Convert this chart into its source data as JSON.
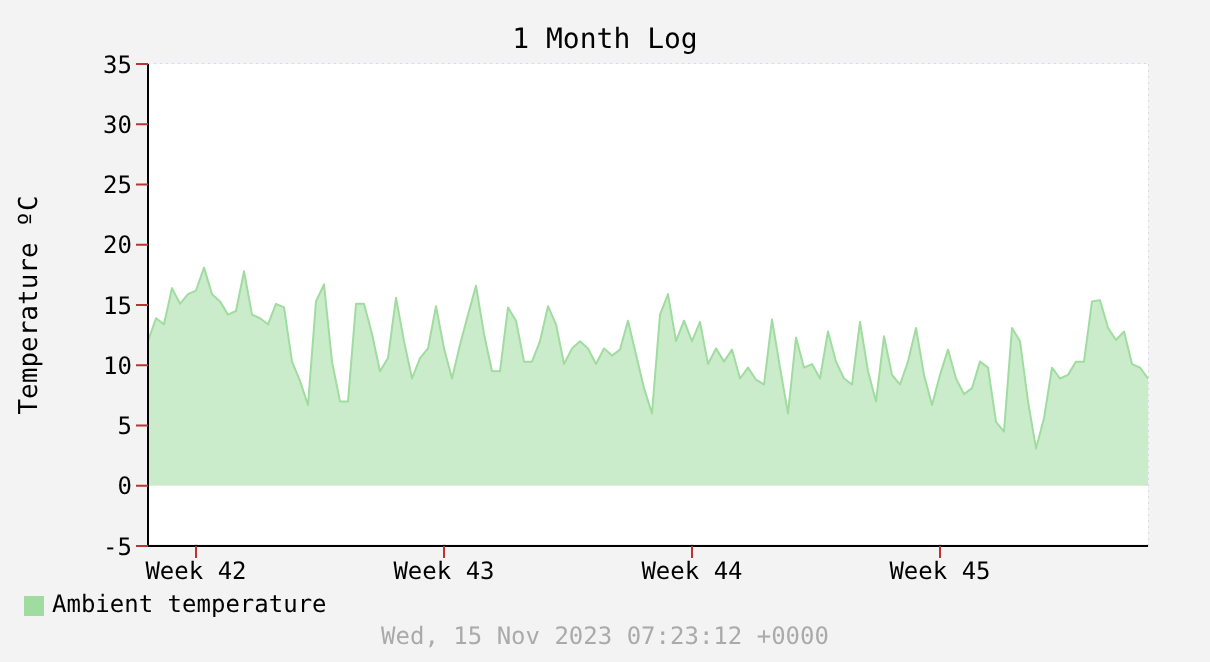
{
  "chart_data": {
    "type": "area",
    "title": "1 Month Log",
    "ylabel": "Temperature ºC",
    "annotations": [
      "Wed, 15 Nov 2023 07:23:12 +0000"
    ],
    "categories": [
      null,
      null,
      null,
      null,
      null,
      null,
      "Week 42",
      null,
      null,
      null,
      null,
      null,
      null,
      null,
      null,
      null,
      null,
      null,
      null,
      null,
      null,
      null,
      null,
      null,
      null,
      null,
      null,
      null,
      null,
      null,
      null,
      null,
      null,
      null,
      null,
      null,
      null,
      "Week 43",
      null,
      null,
      null,
      null,
      null,
      null,
      null,
      null,
      null,
      null,
      null,
      null,
      null,
      null,
      null,
      null,
      null,
      null,
      null,
      null,
      null,
      null,
      null,
      null,
      null,
      null,
      null,
      null,
      null,
      null,
      "Week 44",
      null,
      null,
      null,
      null,
      null,
      null,
      null,
      null,
      null,
      null,
      null,
      null,
      null,
      null,
      null,
      null,
      null,
      null,
      null,
      null,
      null,
      null,
      null,
      null,
      null,
      null,
      null,
      null,
      null,
      null,
      "Week 45",
      null,
      null,
      null,
      null,
      null,
      null,
      null,
      null,
      null,
      null,
      null,
      null,
      null,
      null,
      null,
      null,
      null,
      null,
      null,
      null,
      null,
      null,
      null,
      null,
      null,
      null
    ],
    "ylim": [
      -5,
      35
    ],
    "yticks": [
      -5,
      0,
      5,
      10,
      15,
      20,
      25,
      30,
      35
    ],
    "grid": true,
    "legend": "bottom left",
    "marker": "none",
    "line_style": "solid",
    "series": [
      {
        "name": "Ambient temperature",
        "color": "#a0dca0",
        "values": [
          12.0,
          13.9,
          13.4,
          16.4,
          15.1,
          15.9,
          16.2,
          18.1,
          15.9,
          15.3,
          14.2,
          14.5,
          17.8,
          14.2,
          13.9,
          13.4,
          15.1,
          14.8,
          10.3,
          8.7,
          6.7,
          15.3,
          16.7,
          10.3,
          7.0,
          7.0,
          15.1,
          15.1,
          12.6,
          9.5,
          10.6,
          15.6,
          12.0,
          8.9,
          10.6,
          11.4,
          14.9,
          11.4,
          8.9,
          11.7,
          14.2,
          16.6,
          12.6,
          9.5,
          9.5,
          14.8,
          13.7,
          10.3,
          10.3,
          12.0,
          14.9,
          13.4,
          10.1,
          11.4,
          12.0,
          11.4,
          10.1,
          11.4,
          10.8,
          11.3,
          13.7,
          10.9,
          8.1,
          6.0,
          14.2,
          15.9,
          12.0,
          13.7,
          12.0,
          13.6,
          10.1,
          11.4,
          10.3,
          11.3,
          8.9,
          9.8,
          8.8,
          8.4,
          13.8,
          9.8,
          6.0,
          12.3,
          9.8,
          10.1,
          8.9,
          12.8,
          10.3,
          8.9,
          8.4,
          13.6,
          9.5,
          7.0,
          12.4,
          9.2,
          8.4,
          10.3,
          13.1,
          9.2,
          6.7,
          9.2,
          11.3,
          8.9,
          7.6,
          8.1,
          10.3,
          9.8,
          5.3,
          4.5,
          13.1,
          12.0,
          7.0,
          3.1,
          5.6,
          9.8,
          8.9,
          9.2,
          10.3,
          10.3,
          15.3,
          15.4,
          13.1,
          12.1,
          12.8,
          10.1,
          9.8,
          8.9
        ]
      }
    ]
  }
}
